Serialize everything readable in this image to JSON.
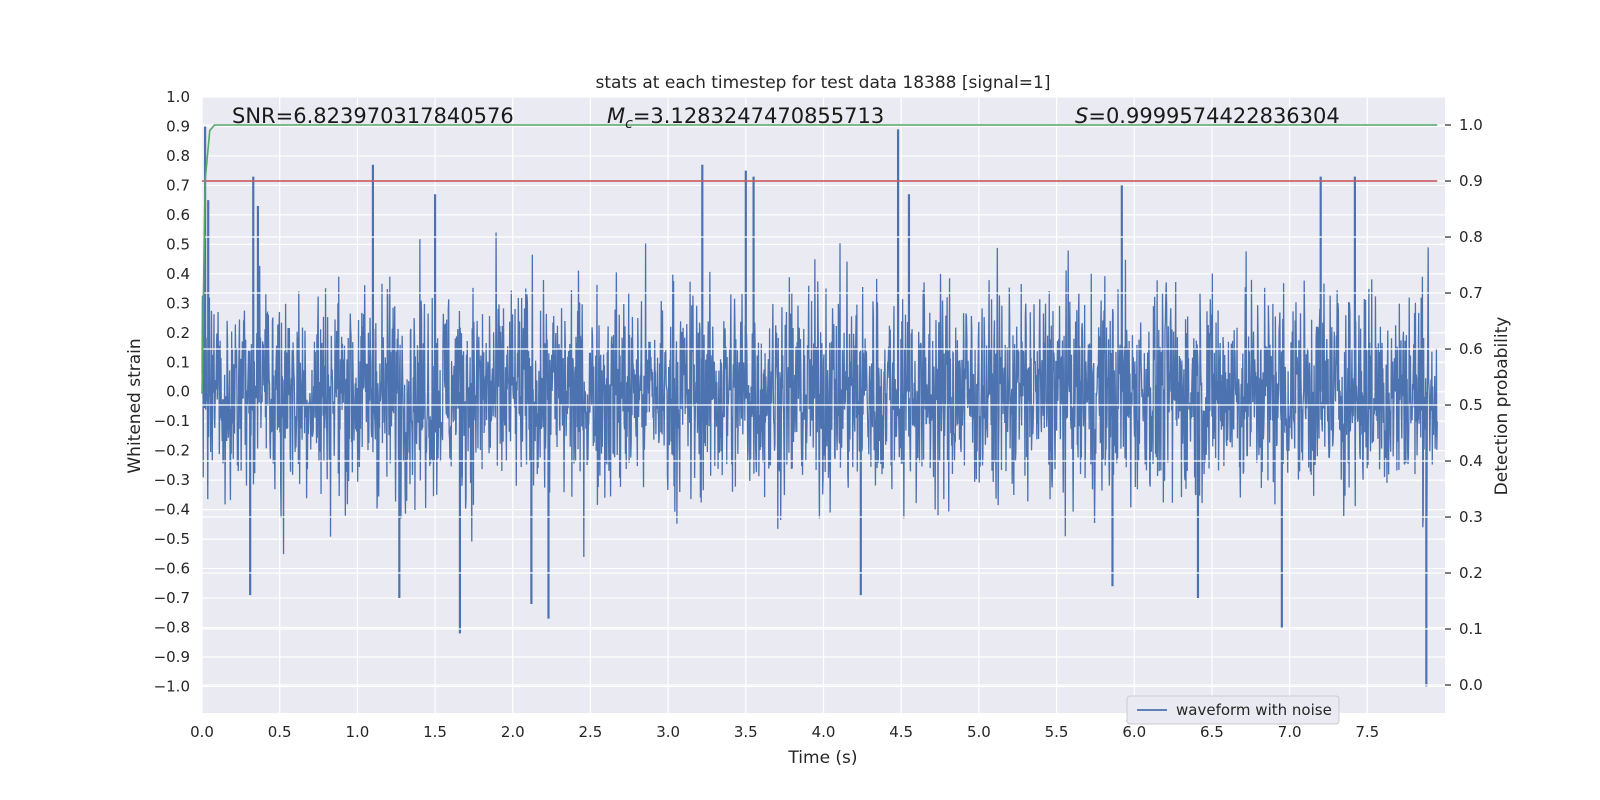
{
  "chart_data": {
    "type": "line",
    "title": "stats at each timestep for test data 18388 [signal=1]",
    "xlabel": "Time (s)",
    "ylabel_left": "Whitened strain",
    "ylabel_right": "Detection probability",
    "xlim": [
      0.0,
      8.0
    ],
    "ylim_left": [
      -1.09,
      1.0
    ],
    "ylim_right": [
      -0.05,
      1.05
    ],
    "x_ticks": [
      "0.0",
      "0.5",
      "1.0",
      "1.5",
      "2.0",
      "2.5",
      "3.0",
      "3.5",
      "4.0",
      "4.5",
      "5.0",
      "5.5",
      "6.0",
      "6.5",
      "7.0",
      "7.5"
    ],
    "x_tick_values": [
      0.0,
      0.5,
      1.0,
      1.5,
      2.0,
      2.5,
      3.0,
      3.5,
      4.0,
      4.5,
      5.0,
      5.5,
      6.0,
      6.5,
      7.0,
      7.5
    ],
    "y_left_ticks": [
      "1.0",
      "0.9",
      "0.8",
      "0.7",
      "0.6",
      "0.5",
      "0.4",
      "0.3",
      "0.2",
      "0.1",
      "0.0",
      "−0.1",
      "−0.2",
      "−0.3",
      "−0.4",
      "−0.5",
      "−0.6",
      "−0.7",
      "−0.8",
      "−0.9",
      "−1.0"
    ],
    "y_left_tick_values": [
      1.0,
      0.9,
      0.8,
      0.7,
      0.6,
      0.5,
      0.4,
      0.3,
      0.2,
      0.1,
      0.0,
      -0.1,
      -0.2,
      -0.3,
      -0.4,
      -0.5,
      -0.6,
      -0.7,
      -0.8,
      -0.9,
      -1.0
    ],
    "y_right_ticks": [
      "1.0",
      "0.9",
      "0.8",
      "0.7",
      "0.6",
      "0.5",
      "0.4",
      "0.3",
      "0.2",
      "0.1",
      "0.0"
    ],
    "y_right_tick_values": [
      1.0,
      0.9,
      0.8,
      0.7,
      0.6,
      0.5,
      0.4,
      0.3,
      0.2,
      0.1,
      0.0
    ],
    "annotations": {
      "snr": "SNR=6.823970317840576",
      "mc_symbol": "M",
      "mc_sub": "c",
      "mc_value": "=3.1283247470855713",
      "s_symbol": "S",
      "s_value": "=0.9999574422836304"
    },
    "legend": {
      "label": "waveform with noise",
      "placement": "lower-right"
    },
    "series": [
      {
        "name": "waveform with noise",
        "axis": "left",
        "color": "#4c72b0",
        "time_range": [
          0.0,
          7.95
        ],
        "typical_envelope": [
          -0.42,
          0.42
        ],
        "peaks": [
          {
            "t": 0.02,
            "v": 0.9
          },
          {
            "t": 0.04,
            "v": 0.65
          },
          {
            "t": 0.33,
            "v": 0.73
          },
          {
            "t": 0.36,
            "v": 0.63
          },
          {
            "t": 1.1,
            "v": 0.77
          },
          {
            "t": 1.5,
            "v": 0.67
          },
          {
            "t": 3.22,
            "v": 0.77
          },
          {
            "t": 3.5,
            "v": 0.75
          },
          {
            "t": 3.55,
            "v": 0.73
          },
          {
            "t": 4.48,
            "v": 0.89
          },
          {
            "t": 4.55,
            "v": 0.67
          },
          {
            "t": 5.92,
            "v": 0.7
          },
          {
            "t": 7.2,
            "v": 0.73
          },
          {
            "t": 7.42,
            "v": 0.73
          },
          {
            "t": 0.31,
            "v": -0.69
          },
          {
            "t": 1.27,
            "v": -0.7
          },
          {
            "t": 1.66,
            "v": -0.82
          },
          {
            "t": 2.12,
            "v": -0.72
          },
          {
            "t": 2.23,
            "v": -0.77
          },
          {
            "t": 4.24,
            "v": -0.69
          },
          {
            "t": 5.86,
            "v": -0.66
          },
          {
            "t": 6.41,
            "v": -0.7
          },
          {
            "t": 6.95,
            "v": -0.8
          },
          {
            "t": 7.88,
            "v": -1.0
          }
        ]
      },
      {
        "name": "detection probability",
        "axis": "right",
        "color": "#55a868",
        "points": [
          [
            0.0,
            0.52
          ],
          [
            0.02,
            0.9
          ],
          [
            0.05,
            0.99
          ],
          [
            0.08,
            1.0
          ],
          [
            7.95,
            1.0
          ]
        ]
      },
      {
        "name": "threshold",
        "axis": "right",
        "color": "#c44e52",
        "points": [
          [
            0.0,
            0.9
          ],
          [
            7.95,
            0.9
          ]
        ]
      }
    ],
    "colors": {
      "plot_background": "#eaeaf2",
      "grid": "#ffffff",
      "waveform": "#4c72b0",
      "probability": "#55a868",
      "threshold": "#c44e52"
    }
  }
}
